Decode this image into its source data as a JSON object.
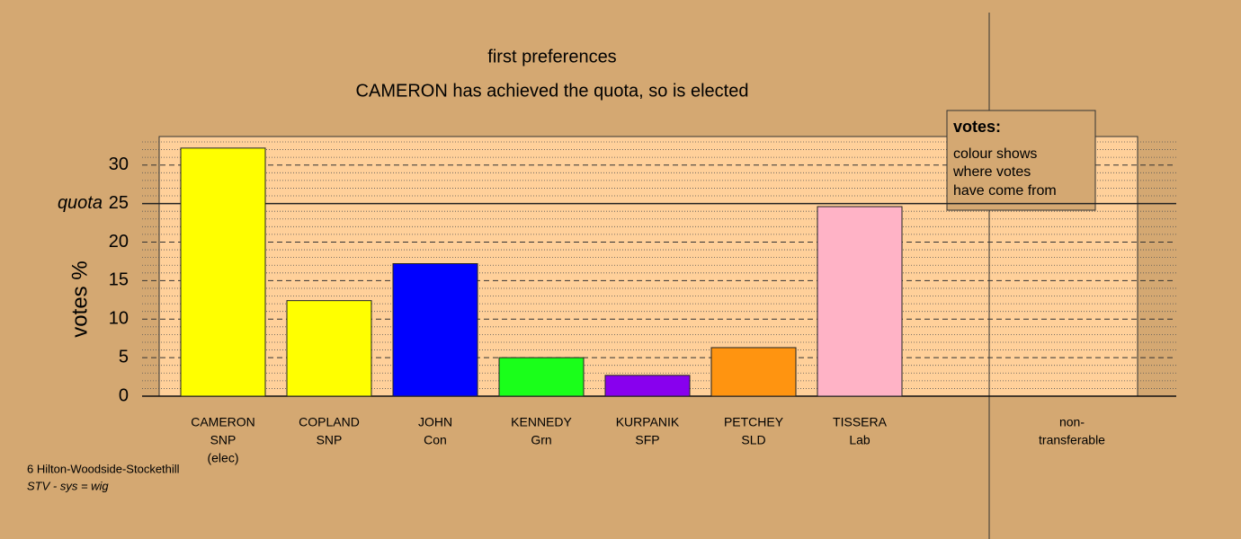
{
  "chart_data": {
    "type": "bar",
    "title": "first preferences",
    "subtitle": "CAMERON has achieved the quota, so is elected",
    "y_label": "votes %",
    "categories": [
      [
        "CAMERON",
        "SNP",
        "(elec)"
      ],
      [
        "COPLAND",
        "SNP"
      ],
      [
        "JOHN",
        "Con"
      ],
      [
        "KENNEDY",
        "Grn"
      ],
      [
        "KURPANIK",
        "SFP"
      ],
      [
        "PETCHEY",
        "SLD"
      ],
      [
        "TISSERA",
        "Lab"
      ],
      [
        "non-",
        "transferable"
      ]
    ],
    "values": [
      32.2,
      12.4,
      17.2,
      5.0,
      2.7,
      6.3,
      24.6,
      null
    ],
    "colors": [
      "#ffff00",
      "#ffff00",
      "#0000ff",
      "#1aff1a",
      "#8800ee",
      "#ff9410",
      "#ffb3c6",
      null
    ],
    "ylim": [
      0,
      33.7
    ],
    "yticks": [
      0,
      5,
      10,
      15,
      20,
      25,
      30
    ],
    "grid": true,
    "quota": {
      "value": 25,
      "label": "quota"
    },
    "legend": {
      "title": "votes:",
      "lines": [
        "colour shows",
        "where votes",
        "have come from"
      ]
    },
    "footnote": [
      "6 Hilton-Woodside-Stockethill",
      "STV - sys = wig"
    ]
  }
}
